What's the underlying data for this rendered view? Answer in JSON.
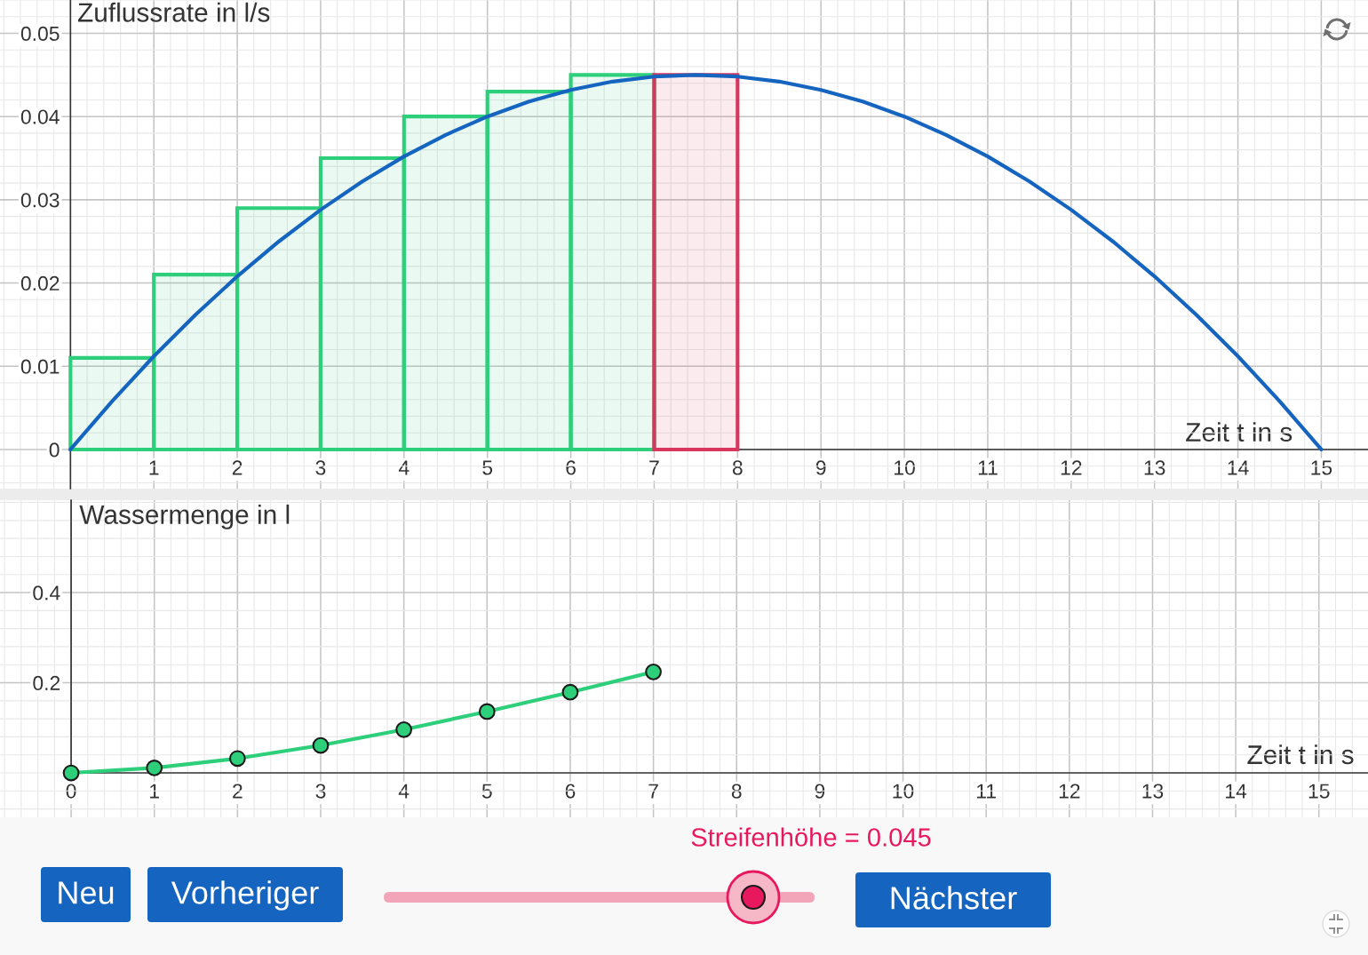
{
  "chart_data": [
    {
      "type": "line",
      "xlabel": "Zeit t in s",
      "ylabel": "Zuflussrate in l/s",
      "xlim": [
        -0.845,
        15.56
      ],
      "ylim": [
        -0.0047,
        0.054
      ],
      "xticks": [
        1,
        2,
        3,
        4,
        5,
        6,
        7,
        8,
        9,
        10,
        11,
        12,
        13,
        14,
        15
      ],
      "yticks": [
        0,
        0.01,
        0.02,
        0.03,
        0.04,
        0.05
      ],
      "grid": true,
      "series": [
        {
          "type": "histogram",
          "color": "#2ecf7b",
          "bins": [
            0,
            1,
            2,
            3,
            4,
            5,
            6,
            7
          ],
          "values": [
            0.011,
            0.021,
            0.029,
            0.035,
            0.04,
            0.043,
            0.045
          ]
        },
        {
          "type": "histogram",
          "color": "#d8365f",
          "bins": [
            7,
            8
          ],
          "values": [
            0.045
          ]
        },
        {
          "type": "line",
          "color": "#1565c0",
          "x": [
            0,
            0.5,
            1,
            1.5,
            2,
            2.5,
            3,
            3.5,
            4,
            4.5,
            5,
            5.5,
            6,
            6.5,
            7,
            7.5,
            8,
            8.5,
            9,
            9.5,
            10,
            10.5,
            11,
            11.5,
            12,
            12.5,
            13,
            13.5,
            14,
            14.5,
            15
          ],
          "values": [
            0,
            0.0058,
            0.0112,
            0.0162,
            0.0208,
            0.025,
            0.0288,
            0.0322,
            0.0352,
            0.0378,
            0.04,
            0.0418,
            0.0432,
            0.0442,
            0.0448,
            0.045,
            0.0448,
            0.0442,
            0.0432,
            0.0418,
            0.04,
            0.0378,
            0.0352,
            0.0322,
            0.0288,
            0.025,
            0.0208,
            0.0162,
            0.0112,
            0.0058,
            0
          ]
        }
      ]
    },
    {
      "type": "line",
      "xlabel": "Zeit t in s",
      "ylabel": "Wassermenge in l",
      "xlim": [
        -0.855,
        15.59
      ],
      "ylim": [
        -0.0985,
        0.605
      ],
      "xticks": [
        0,
        1,
        2,
        3,
        4,
        5,
        6,
        7,
        8,
        9,
        10,
        11,
        12,
        13,
        14,
        15
      ],
      "yticks": [
        0.2,
        0.4
      ],
      "grid": true,
      "marker": "circle",
      "series": [
        {
          "color": "#2ecf7b",
          "x": [
            0,
            1,
            2,
            3,
            4,
            5,
            6,
            7
          ],
          "values": [
            0,
            0.011,
            0.032,
            0.061,
            0.096,
            0.136,
            0.179,
            0.224
          ]
        }
      ]
    },
    {
      "type": "other",
      "title": "Streifenhöhe = 0.045",
      "annotations": [
        "Neu",
        "Vorheriger",
        "Nächster"
      ]
    }
  ]
}
